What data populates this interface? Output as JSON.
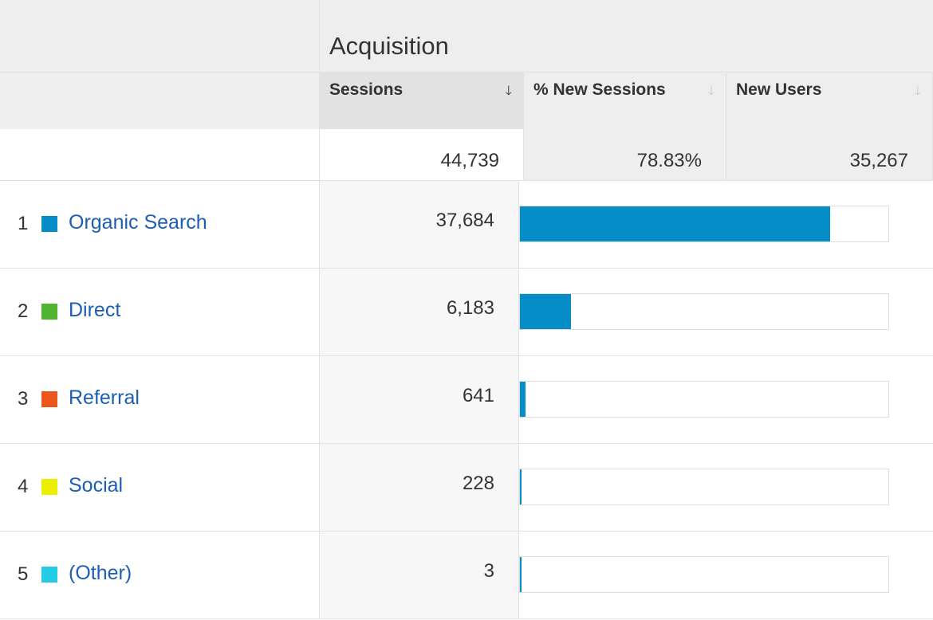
{
  "header": {
    "group_title": "Acquisition"
  },
  "columns": [
    {
      "label": "Sessions",
      "sort_icon": "arrow-down-icon",
      "active": true
    },
    {
      "label": "% New Sessions",
      "sort_icon": "arrow-down-icon",
      "active": false
    },
    {
      "label": "New Users",
      "sort_icon": "arrow-down-icon",
      "active": false
    }
  ],
  "totals": {
    "sessions": "44,739",
    "new_sessions_pct": "78.83%",
    "new_users": "35,267"
  },
  "colors": {
    "bar": "#058dc7",
    "link": "#1a5fb4"
  },
  "rows": [
    {
      "rank": "1",
      "channel": "Organic Search",
      "swatch_color": "#058dc7",
      "sessions": "37,684",
      "sessions_value": 37684
    },
    {
      "rank": "2",
      "channel": "Direct",
      "swatch_color": "#50b432",
      "sessions": "6,183",
      "sessions_value": 6183
    },
    {
      "rank": "3",
      "channel": "Referral",
      "swatch_color": "#ed561b",
      "sessions": "641",
      "sessions_value": 641
    },
    {
      "rank": "4",
      "channel": "Social",
      "swatch_color": "#edef00",
      "sessions": "228",
      "sessions_value": 228
    },
    {
      "rank": "5",
      "channel": "(Other)",
      "swatch_color": "#24cbe5",
      "sessions": "3",
      "sessions_value": 3
    }
  ]
}
